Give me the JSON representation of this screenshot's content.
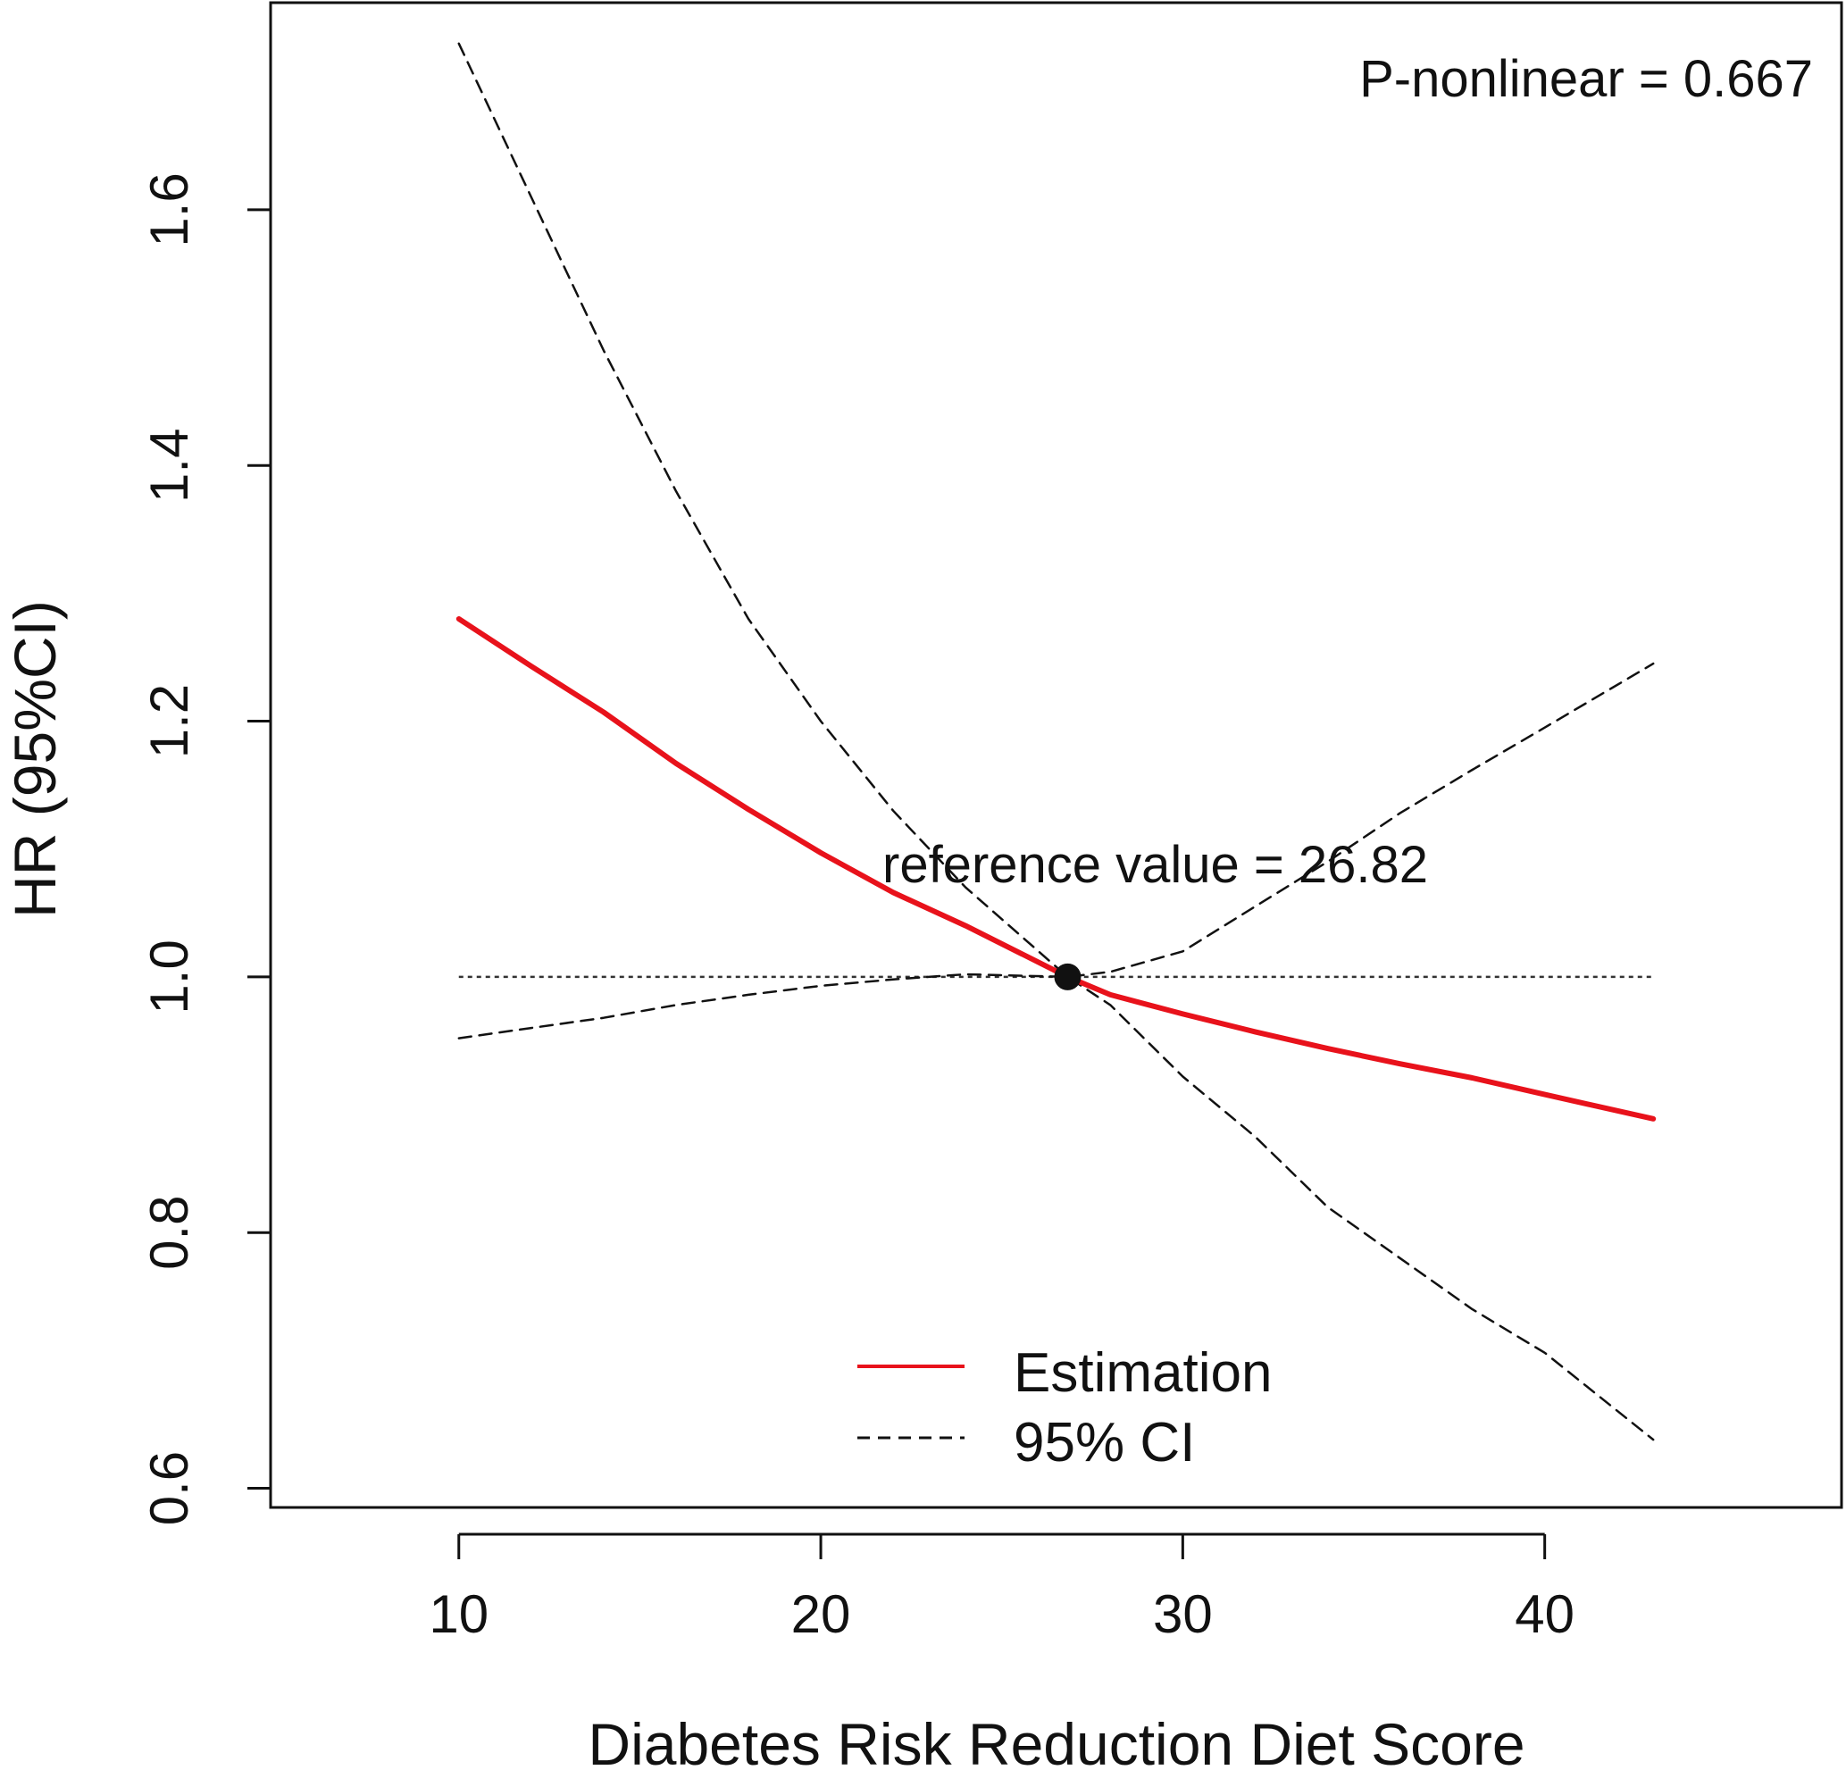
{
  "chart_data": {
    "type": "line",
    "xlabel": "Diabetes Risk Reduction Diet Score",
    "ylabel": "HR (95%CI)",
    "xlim": [
      4.8,
      48.2
    ],
    "ylim": [
      0.585,
      1.762
    ],
    "xticks": [
      10,
      20,
      30,
      40
    ],
    "yticks": [
      0.6,
      0.8,
      1.0,
      1.2,
      1.4,
      1.6
    ],
    "xtick_labels": [
      "10",
      "20",
      "30",
      "40"
    ],
    "ytick_labels": [
      "0.6",
      "0.8",
      "1.0",
      "1.2",
      "1.4",
      "1.6"
    ],
    "reference_line": {
      "y": 1.0,
      "x_from": 10,
      "x_to": 43,
      "style": "dotted"
    },
    "reference_point": {
      "x": 26.82,
      "y": 1.0
    },
    "annotations": {
      "p_nonlinear": "P-nonlinear = 0.667",
      "reference_value": "reference value = 26.82"
    },
    "legend": {
      "position": "bottom-center",
      "entries": [
        {
          "label": "Estimation",
          "style": "solid",
          "color": "#e8121b"
        },
        {
          "label": "95% CI",
          "style": "dashed",
          "color": "#111111"
        }
      ]
    },
    "series": [
      {
        "name": "Estimation",
        "color": "#e8121b",
        "style": "solid",
        "x": [
          10,
          12,
          14,
          16,
          18,
          20,
          22,
          24,
          26.82,
          28,
          30,
          32,
          34,
          36,
          38,
          40,
          43
        ],
        "y": [
          1.28,
          1.243,
          1.207,
          1.167,
          1.131,
          1.097,
          1.066,
          1.04,
          1.0,
          0.986,
          0.971,
          0.957,
          0.944,
          0.932,
          0.921,
          0.908,
          0.889
        ]
      },
      {
        "name": "95% CI (upper)",
        "color": "#111111",
        "style": "dashed",
        "x": [
          10,
          12,
          14,
          16,
          18,
          20,
          22,
          24,
          26.82,
          28,
          30,
          32,
          34,
          36,
          38,
          40,
          43
        ],
        "y": [
          1.73,
          1.61,
          1.49,
          1.38,
          1.28,
          1.2,
          1.13,
          1.07,
          1.0,
          1.004,
          1.02,
          1.055,
          1.09,
          1.128,
          1.162,
          1.195,
          1.245
        ]
      },
      {
        "name": "95% CI (lower)",
        "color": "#111111",
        "style": "dashed",
        "x": [
          10,
          12,
          14,
          16,
          18,
          20,
          22,
          24,
          26.82,
          28,
          30,
          32,
          34,
          36,
          38,
          40,
          43
        ],
        "y": [
          0.952,
          0.96,
          0.968,
          0.978,
          0.986,
          0.993,
          0.998,
          1.002,
          1.0,
          0.978,
          0.922,
          0.875,
          0.82,
          0.78,
          0.74,
          0.706,
          0.638
        ]
      }
    ],
    "colors": {
      "estimation": "#e8121b",
      "ci": "#111111",
      "frame": "#111111"
    }
  }
}
